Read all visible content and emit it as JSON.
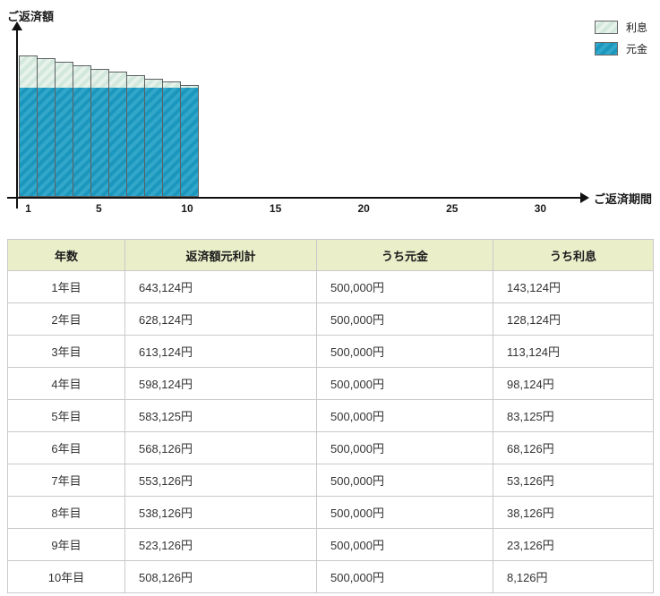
{
  "colors": {
    "interest_base": "#d3e8dc",
    "interest_stripe": "#e6f2ea",
    "principal_base": "#1b97be",
    "principal_stripe": "#33a7ca",
    "bar_border": "#5c6063",
    "axis": "#111111",
    "table_header_bg": "#eaefca",
    "table_border": "#c9c9c9"
  },
  "chart_data": {
    "type": "bar",
    "stacked": true,
    "title": "",
    "xlabel": "ご返済期間",
    "ylabel": "ご返済額",
    "x": [
      1,
      2,
      3,
      4,
      5,
      6,
      7,
      8,
      9,
      10
    ],
    "x_axis_ticks": [
      1,
      5,
      10,
      15,
      20,
      25,
      30
    ],
    "x_axis_range": [
      0,
      32
    ],
    "grid": false,
    "legend_position": "top-right",
    "legend": [
      "利息",
      "元金"
    ],
    "series": [
      {
        "name": "元金",
        "values": [
          500000,
          500000,
          500000,
          500000,
          500000,
          500000,
          500000,
          500000,
          500000,
          500000
        ]
      },
      {
        "name": "利息",
        "values": [
          143124,
          128124,
          113124,
          98124,
          83125,
          68126,
          53126,
          38126,
          23126,
          8126
        ]
      }
    ]
  },
  "table": {
    "headers": [
      "年数",
      "返済額元利計",
      "うち元金",
      "うち利息"
    ],
    "rows": [
      [
        "1年目",
        "643,124円",
        "500,000円",
        "143,124円"
      ],
      [
        "2年目",
        "628,124円",
        "500,000円",
        "128,124円"
      ],
      [
        "3年目",
        "613,124円",
        "500,000円",
        "113,124円"
      ],
      [
        "4年目",
        "598,124円",
        "500,000円",
        "98,124円"
      ],
      [
        "5年目",
        "583,125円",
        "500,000円",
        "83,125円"
      ],
      [
        "6年目",
        "568,126円",
        "500,000円",
        "68,126円"
      ],
      [
        "7年目",
        "553,126円",
        "500,000円",
        "53,126円"
      ],
      [
        "8年目",
        "538,126円",
        "500,000円",
        "38,126円"
      ],
      [
        "9年目",
        "523,126円",
        "500,000円",
        "23,126円"
      ],
      [
        "10年目",
        "508,126円",
        "500,000円",
        "8,126円"
      ]
    ]
  }
}
